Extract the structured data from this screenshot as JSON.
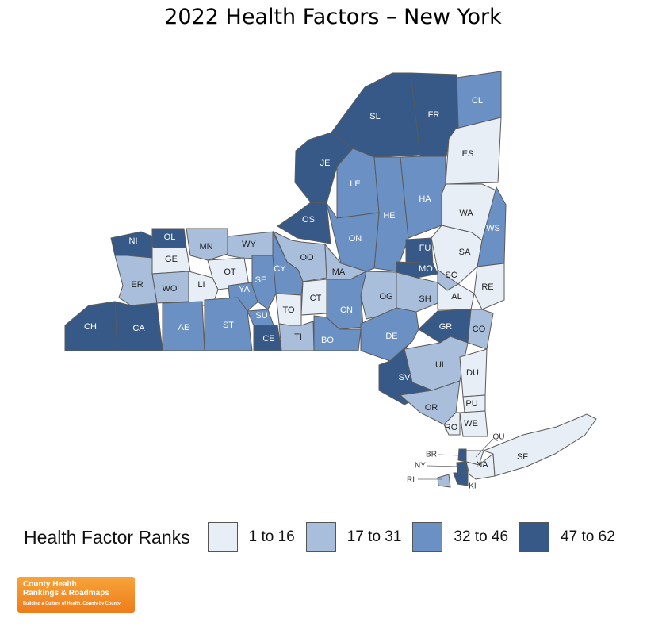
{
  "title": "2022 Health Factors – New York",
  "legend": {
    "title": "Health Factor Ranks",
    "classes": [
      {
        "label": "1 to 16",
        "color": "#e8eef6"
      },
      {
        "label": "17 to 31",
        "color": "#a9bedb"
      },
      {
        "label": "32 to 46",
        "color": "#6b90c3"
      },
      {
        "label": "47 to 62",
        "color": "#365987"
      }
    ]
  },
  "counties": [
    {
      "code": "CL",
      "cls": 2
    },
    {
      "code": "SL",
      "cls": 3
    },
    {
      "code": "FR",
      "cls": 3
    },
    {
      "code": "ES",
      "cls": 0
    },
    {
      "code": "JE",
      "cls": 3
    },
    {
      "code": "LE",
      "cls": 2
    },
    {
      "code": "HE",
      "cls": 2
    },
    {
      "code": "HA",
      "cls": 2
    },
    {
      "code": "WA",
      "cls": 0
    },
    {
      "code": "WS",
      "cls": 2
    },
    {
      "code": "OS",
      "cls": 3
    },
    {
      "code": "ON",
      "cls": 2
    },
    {
      "code": "FU",
      "cls": 3
    },
    {
      "code": "SA",
      "cls": 0
    },
    {
      "code": "MO",
      "cls": 3
    },
    {
      "code": "SC",
      "cls": 1
    },
    {
      "code": "NI",
      "cls": 3
    },
    {
      "code": "OL",
      "cls": 3
    },
    {
      "code": "MN",
      "cls": 1
    },
    {
      "code": "WY",
      "cls": 1
    },
    {
      "code": "GE",
      "cls": 0
    },
    {
      "code": "OT",
      "cls": 0
    },
    {
      "code": "OO",
      "cls": 1
    },
    {
      "code": "CY",
      "cls": 2
    },
    {
      "code": "MA",
      "cls": 1
    },
    {
      "code": "ER",
      "cls": 1
    },
    {
      "code": "WO",
      "cls": 1
    },
    {
      "code": "LI",
      "cls": 0
    },
    {
      "code": "YA",
      "cls": 2
    },
    {
      "code": "SE",
      "cls": 2
    },
    {
      "code": "OG",
      "cls": 1
    },
    {
      "code": "SH",
      "cls": 1
    },
    {
      "code": "AL",
      "cls": 0
    },
    {
      "code": "RE",
      "cls": 0
    },
    {
      "code": "CT",
      "cls": 0
    },
    {
      "code": "TO",
      "cls": 0
    },
    {
      "code": "CN",
      "cls": 2
    },
    {
      "code": "CH",
      "cls": 3
    },
    {
      "code": "CA",
      "cls": 3
    },
    {
      "code": "AE",
      "cls": 2
    },
    {
      "code": "ST",
      "cls": 2
    },
    {
      "code": "SU",
      "cls": 2
    },
    {
      "code": "GR",
      "cls": 3
    },
    {
      "code": "CO",
      "cls": 1
    },
    {
      "code": "CE",
      "cls": 3
    },
    {
      "code": "TI",
      "cls": 1
    },
    {
      "code": "BO",
      "cls": 2
    },
    {
      "code": "DE",
      "cls": 2
    },
    {
      "code": "UL",
      "cls": 1
    },
    {
      "code": "DU",
      "cls": 0
    },
    {
      "code": "SV",
      "cls": 3
    },
    {
      "code": "PU",
      "cls": 0
    },
    {
      "code": "OR",
      "cls": 1
    },
    {
      "code": "WE",
      "cls": 0
    },
    {
      "code": "RO",
      "cls": 0
    },
    {
      "code": "QU",
      "cls": 0
    },
    {
      "code": "BR",
      "cls": 3
    },
    {
      "code": "NY",
      "cls": 3
    },
    {
      "code": "RI",
      "cls": 1
    },
    {
      "code": "NA",
      "cls": 0
    },
    {
      "code": "KI",
      "cls": 3
    },
    {
      "code": "SF",
      "cls": 0
    }
  ],
  "logo": {
    "line1": "County Health",
    "line2": "Rankings & Roadmaps",
    "tagline": "Building a Culture of Health, County by County"
  }
}
